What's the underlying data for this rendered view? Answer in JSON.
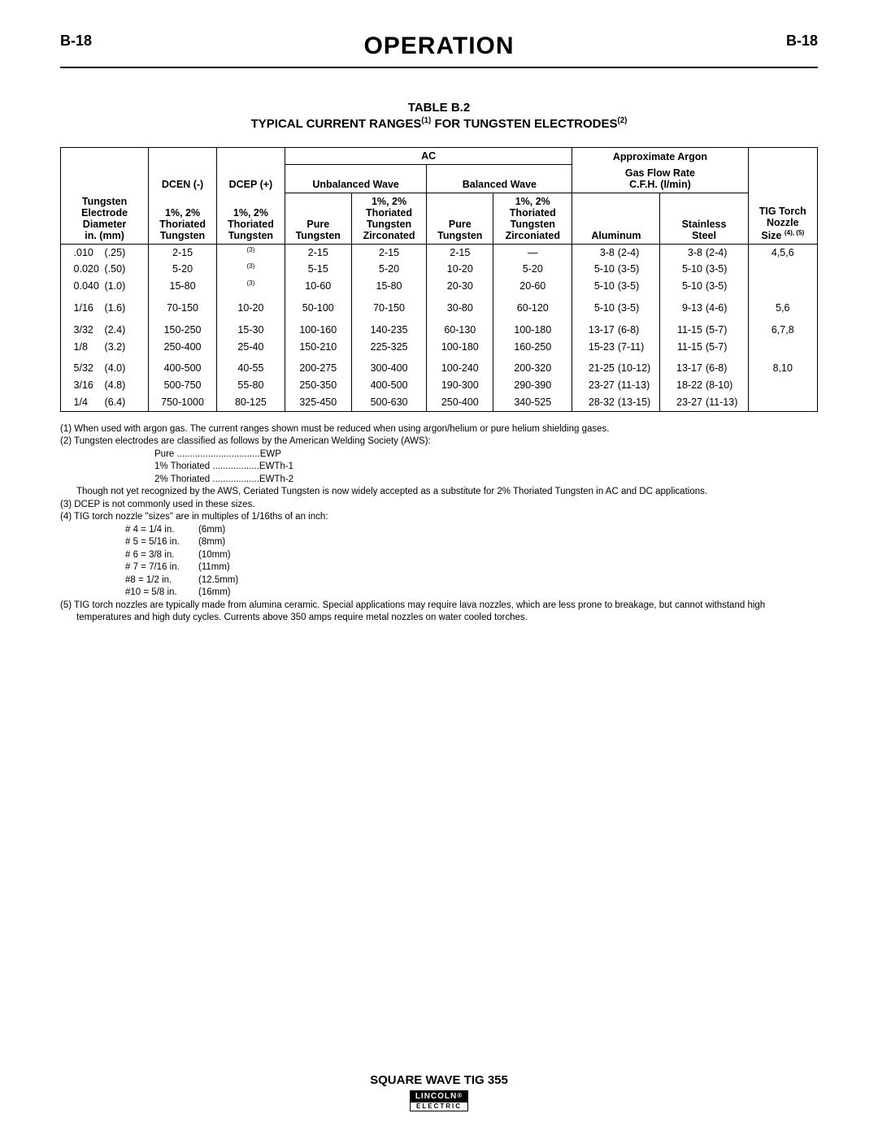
{
  "page": {
    "left": "B-18",
    "right": "B-18",
    "section": "OPERATION"
  },
  "table": {
    "label": "TABLE B.2",
    "title_a": "TYPICAL CURRENT RANGES",
    "title_sup1": "(1)",
    "title_b": " FOR TUNGSTEN ELECTRODES",
    "title_sup2": "(2)",
    "head": {
      "ac": "AC",
      "argon1": "Approximate Argon",
      "argon2": "Gas Flow Rate",
      "argon3": "C.F.H. (l/min)",
      "dcen": "DCEN (-)",
      "dcep": "DCEP (+)",
      "unbal": "Unbalanced Wave",
      "bal": "Balanced Wave",
      "diam1": "Tungsten",
      "diam2": "Electrode",
      "diam3": "Diameter",
      "diam4": "in. (mm)",
      "th1": "1%, 2%",
      "th2": "Thoriated",
      "th3": "Tungsten",
      "pure": "Pure",
      "tung": "Tungsten",
      "zc1": "1%, 2%",
      "zc2": "Thoriated",
      "zc3": "Tungsten",
      "zc4": "Zirconated",
      "zc4b": "Zirconiated",
      "alum": "Aluminum",
      "ss1": "Stainless",
      "ss2": "Steel",
      "nz1": "TIG Torch",
      "nz2": "Nozzle",
      "nz3": "Size ",
      "nz3sup": "(4), (5)"
    },
    "rows": [
      {
        "in": ".010",
        "mm": "(.25)",
        "dcen": "2-15",
        "dcep": "(3)",
        "u_pure": "2-15",
        "u_th": "2-15",
        "b_pure": "2-15",
        "b_th": "—",
        "al_a": "3-8",
        "al_b": "(2-4)",
        "ss_a": "3-8",
        "ss_b": "(2-4)",
        "nz": "4,5,6"
      },
      {
        "in": "0.020",
        "mm": "(.50)",
        "dcen": "5-20",
        "dcep": "(3)",
        "u_pure": "5-15",
        "u_th": "5-20",
        "b_pure": "10-20",
        "b_th": "5-20",
        "al_a": "5-10",
        "al_b": "(3-5)",
        "ss_a": "5-10",
        "ss_b": "(3-5)",
        "nz": ""
      },
      {
        "in": "0.040",
        "mm": "(1.0)",
        "dcen": "15-80",
        "dcep": "(3)",
        "u_pure": "10-60",
        "u_th": "15-80",
        "b_pure": "20-30",
        "b_th": "20-60",
        "al_a": "5-10",
        "al_b": "(3-5)",
        "ss_a": "5-10",
        "ss_b": "(3-5)",
        "nz": ""
      },
      {
        "spacer": true
      },
      {
        "in": "1/16",
        "mm": "(1.6)",
        "dcen": "70-150",
        "dcep": "10-20",
        "u_pure": "50-100",
        "u_th": "70-150",
        "b_pure": "30-80",
        "b_th": "60-120",
        "al_a": "5-10",
        "al_b": "(3-5)",
        "ss_a": "9-13",
        "ss_b": "(4-6)",
        "nz": "5,6"
      },
      {
        "spacer": true
      },
      {
        "in": "3/32",
        "mm": "(2.4)",
        "dcen": "150-250",
        "dcep": "15-30",
        "u_pure": "100-160",
        "u_th": "140-235",
        "b_pure": "60-130",
        "b_th": "100-180",
        "al_a": "13-17",
        "al_b": "(6-8)",
        "ss_a": "11-15",
        "ss_b": "(5-7)",
        "nz": "6,7,8"
      },
      {
        "in": "1/8",
        "mm": "(3.2)",
        "dcen": "250-400",
        "dcep": "25-40",
        "u_pure": "150-210",
        "u_th": "225-325",
        "b_pure": "100-180",
        "b_th": "160-250",
        "al_a": "15-23",
        "al_b": "(7-11)",
        "ss_a": "11-15",
        "ss_b": "(5-7)",
        "nz": ""
      },
      {
        "spacer": true
      },
      {
        "in": "5/32",
        "mm": "(4.0)",
        "dcen": "400-500",
        "dcep": "40-55",
        "u_pure": "200-275",
        "u_th": "300-400",
        "b_pure": "100-240",
        "b_th": "200-320",
        "al_a": "21-25",
        "al_b": "(10-12)",
        "ss_a": "13-17",
        "ss_b": "(6-8)",
        "nz": "8,10"
      },
      {
        "in": "3/16",
        "mm": "(4.8)",
        "dcen": "500-750",
        "dcep": "55-80",
        "u_pure": "250-350",
        "u_th": "400-500",
        "b_pure": "190-300",
        "b_th": "290-390",
        "al_a": "23-27",
        "al_b": "(11-13)",
        "ss_a": "18-22",
        "ss_b": "(8-10)",
        "nz": ""
      },
      {
        "in": "1/4",
        "mm": "(6.4)",
        "dcen": "750-1000",
        "dcep": "80-125",
        "u_pure": "325-450",
        "u_th": "500-630",
        "b_pure": "250-400",
        "b_th": "340-525",
        "al_a": "28-32",
        "al_b": "(13-15)",
        "ss_a": "23-27",
        "ss_b": "(11-13)",
        "nz": "",
        "last": true
      }
    ]
  },
  "notes": {
    "n1": "(1) When used with argon gas.  The current ranges shown must be reduced when using argon/helium or pure helium shielding gases.",
    "n2": "(2) Tungsten electrodes are classified as follows by the American Welding Society (AWS):",
    "cls": [
      "Pure ................................EWP",
      "1% Thoriated ..................EWTh-1",
      "2% Thoriated ..................EWTh-2"
    ],
    "n2b": "Though not yet recognized by the AWS, Ceriated Tungsten is now widely accepted as a substitute for 2% Thoriated Tungsten in AC and DC applications.",
    "n3": "(3) DCEP is not commonly used in these sizes.",
    "n4": "(4) TIG torch nozzle \"sizes\" are in multiples of 1/16ths of an inch:",
    "nozzles": [
      {
        "a": "# 4 = 1/4 in.",
        "b": "(6mm)"
      },
      {
        "a": "# 5 = 5/16 in.",
        "b": "(8mm)"
      },
      {
        "a": "# 6 = 3/8 in.",
        "b": "(10mm)"
      },
      {
        "a": "# 7 = 7/16 in.",
        "b": "(11mm)"
      },
      {
        "a": "#8 = 1/2 in.",
        "b": "(12.5mm)"
      },
      {
        "a": "#10 = 5/8 in.",
        "b": "(16mm)"
      }
    ],
    "n5a": "(5) TIG torch nozzles are typically made from alumina ceramic.  Special applications may require lava nozzles, which are less prone to breakage, but cannot withstand high",
    "n5b": "temperatures and high duty cycles.  Currents above 350 amps require metal nozzles on water cooled torches."
  },
  "footer": {
    "product": "SQUARE WAVE TIG 355",
    "brand_top": "LINCOLN",
    "brand_bot": "ELECTRIC"
  }
}
